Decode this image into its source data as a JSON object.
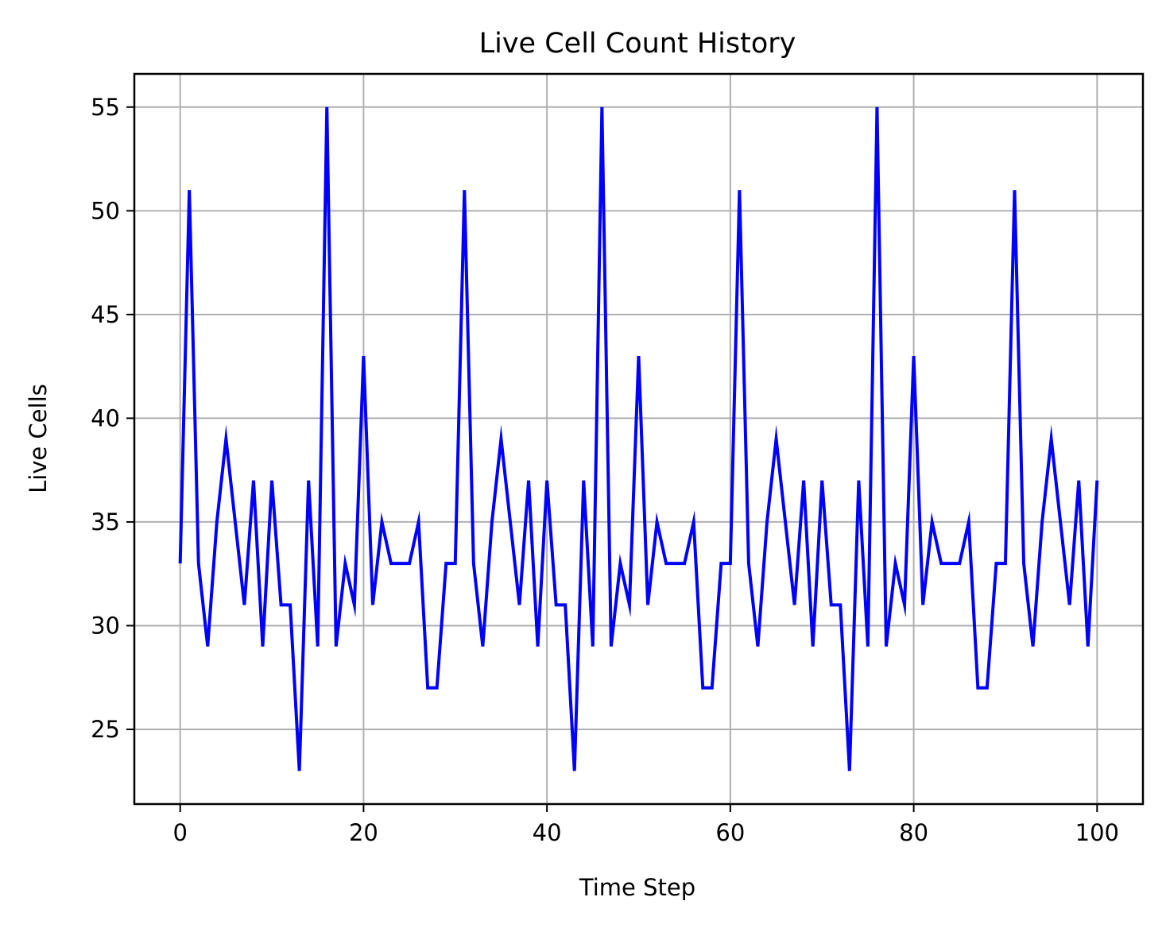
{
  "chart_data": {
    "type": "line",
    "title": "Live Cell Count History",
    "xlabel": "Time Step",
    "ylabel": "Live Cells",
    "xlim": [
      -5,
      105
    ],
    "ylim": [
      21.4,
      56.6
    ],
    "xticks": [
      0,
      20,
      40,
      60,
      80,
      100
    ],
    "yticks": [
      25,
      30,
      35,
      40,
      45,
      50,
      55
    ],
    "grid": true,
    "colors": {
      "line": "#0000ff",
      "grid": "#b0b0b0",
      "axes": "#000000"
    },
    "series": [
      {
        "x": [
          0,
          1,
          2,
          3,
          4,
          5,
          6,
          7,
          8,
          9,
          10,
          11,
          12,
          13,
          14,
          15,
          16,
          17,
          18,
          19,
          20,
          21,
          22,
          23,
          24,
          25,
          26,
          27,
          28,
          29,
          30,
          31,
          32,
          33,
          34,
          35,
          36,
          37,
          38,
          39,
          40,
          41,
          42,
          43,
          44,
          45,
          46,
          47,
          48,
          49,
          50,
          51,
          52,
          53,
          54,
          55,
          56,
          57,
          58,
          59,
          60,
          61,
          62,
          63,
          64,
          65,
          66,
          67,
          68,
          69,
          70,
          71,
          72,
          73,
          74,
          75,
          76,
          77,
          78,
          79,
          80,
          81,
          82,
          83,
          84,
          85,
          86,
          87,
          88,
          89,
          90,
          91,
          92,
          93,
          94,
          95,
          96,
          97,
          98,
          99,
          100
        ],
        "values": [
          33,
          51,
          33,
          29,
          35,
          39,
          35,
          31,
          37,
          29,
          37,
          31,
          31,
          23,
          37,
          29,
          55,
          29,
          33,
          31,
          43,
          31,
          35,
          33,
          33,
          33,
          35,
          27,
          27,
          33,
          33,
          51,
          33,
          29,
          35,
          39,
          35,
          31,
          37,
          29,
          37,
          31,
          31,
          23,
          37,
          29,
          55,
          29,
          33,
          31,
          43,
          31,
          35,
          33,
          33,
          33,
          35,
          27,
          27,
          33,
          33,
          51,
          33,
          29,
          35,
          39,
          35,
          31,
          37,
          29,
          37,
          31,
          31,
          23,
          37,
          29,
          55,
          29,
          33,
          31,
          43,
          31,
          35,
          33,
          33,
          33,
          35,
          27,
          27,
          33,
          33,
          51,
          33,
          29,
          35,
          39,
          35,
          31,
          37,
          29,
          37
        ]
      }
    ]
  }
}
